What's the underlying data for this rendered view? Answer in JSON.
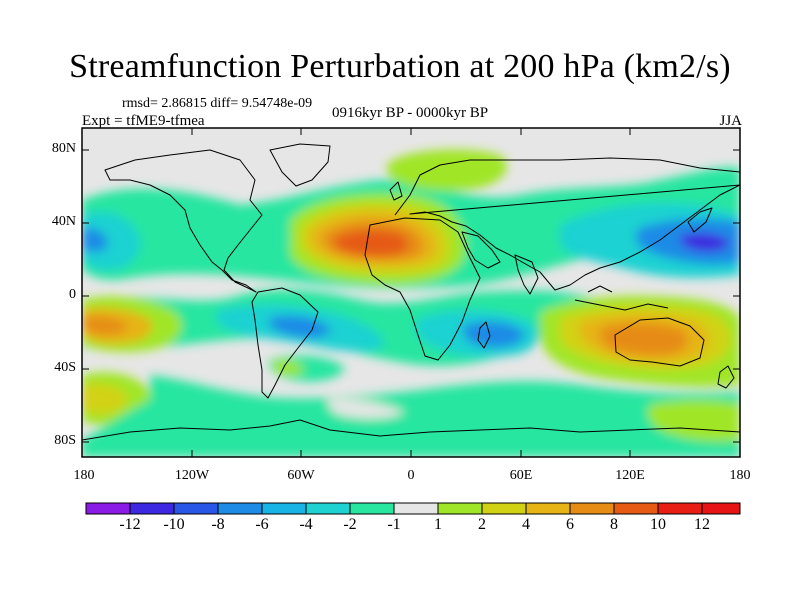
{
  "title": "Streamfunction Perturbation at 200 hPa (km2/s)",
  "stats": "rmsd= 2.86815 diff= 9.54748e-09",
  "experiment": "Expt = tfME9-tfmea",
  "period": "0916kyr BP - 0000kyr BP",
  "season": "JJA",
  "axes": {
    "y_ticks": [
      "80N",
      "40N",
      "0",
      "40S",
      "80S"
    ],
    "x_ticks": [
      "180",
      "120W",
      "60W",
      "0",
      "60E",
      "120E",
      "180"
    ]
  },
  "colorbar": {
    "labels": [
      "-12",
      "-10",
      "-8",
      "-6",
      "-4",
      "-2",
      "-1",
      "1",
      "2",
      "4",
      "6",
      "8",
      "10",
      "12"
    ],
    "colors": [
      "#8a1ae6",
      "#3c28e0",
      "#2856e6",
      "#1e8be6",
      "#18b4e6",
      "#1ed2d2",
      "#28e6a0",
      "#e6e6e6",
      "#a0e628",
      "#d2d214",
      "#e6b414",
      "#e68c14",
      "#e65a14",
      "#e61e14",
      "#e61414"
    ]
  },
  "colors": {
    "background": "#e6e6e6",
    "frame": "#000000",
    "coast": "#000000"
  }
}
